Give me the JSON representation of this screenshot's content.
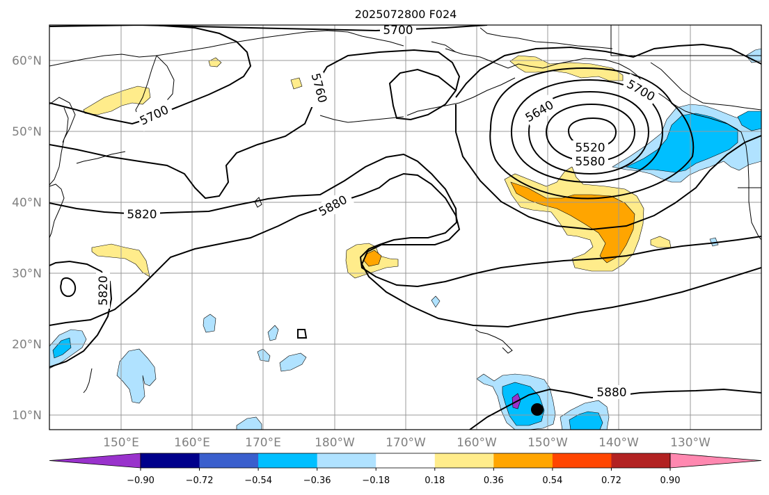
{
  "title": "2025072800 F024",
  "lat_labels": [
    "60°N",
    "50°N",
    "40°N",
    "30°N",
    "20°N",
    "10°N"
  ],
  "lon_labels": [
    "150°E",
    "160°E",
    "170°E",
    "180°W",
    "170°W",
    "160°W",
    "150°W",
    "140°W",
    "130°W"
  ],
  "contour_labels": [
    "5700",
    "5760",
    "5700",
    "5640",
    "5700",
    "5520",
    "5580",
    "5820",
    "5880",
    "5820",
    "5880"
  ],
  "colorbar": {
    "tick_labels": [
      "−0.90",
      "−0.72",
      "−0.54",
      "−0.36",
      "−0.18",
      "0.18",
      "0.36",
      "0.54",
      "0.72",
      "0.90"
    ],
    "colors": [
      "#9932cc",
      "#00008b",
      "#3a5fcd",
      "#00bfff",
      "#b0e2ff",
      "#ffffff",
      "#ffec8b",
      "#ffa500",
      "#ff4500",
      "#b22222",
      "#ff88b0"
    ]
  },
  "colors": {
    "pos_light": "#ffec8b",
    "pos_mid": "#ffa500",
    "neg_light": "#b0e2ff",
    "neg_mid": "#00bfff",
    "neg_dark": "#3a5fcd",
    "neg_purple": "#9932cc"
  }
}
